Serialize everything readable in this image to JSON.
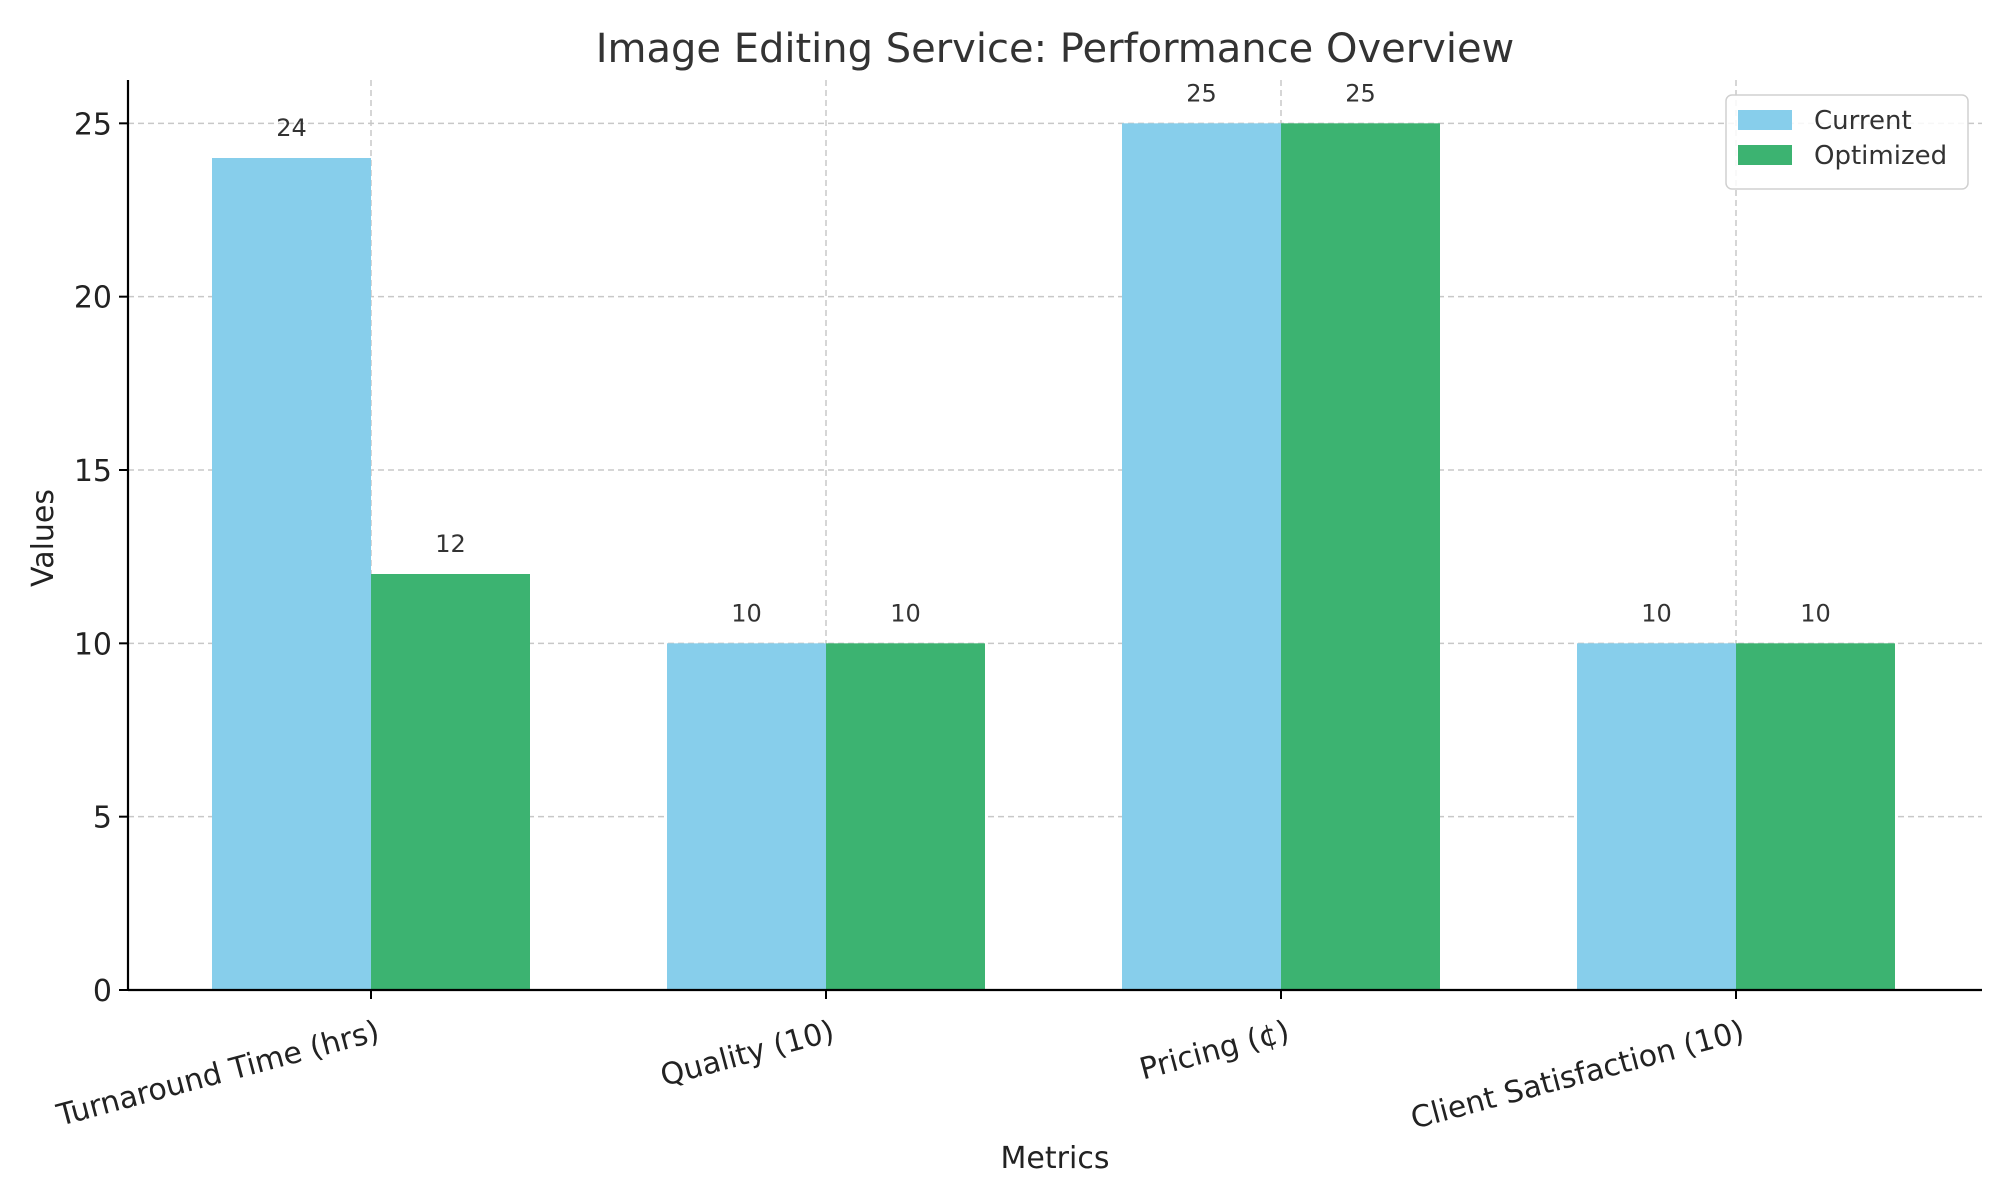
{
  "chart_data": {
    "type": "bar",
    "title": "Image Editing Service: Performance Overview",
    "xlabel": "Metrics",
    "ylabel": "Values",
    "categories": [
      "Turnaround Time (hrs)",
      "Quality (10)",
      "Pricing (¢)",
      "Client Satisfaction (10)"
    ],
    "series": [
      {
        "name": "Current",
        "values": [
          24,
          10,
          25,
          10
        ],
        "color": "#87CEEB"
      },
      {
        "name": "Optimized",
        "values": [
          12,
          10,
          25,
          10
        ],
        "color": "#3CB371"
      }
    ],
    "ylim": [
      0,
      26.25
    ],
    "yticks": [
      0,
      5,
      10,
      15,
      20,
      25
    ],
    "grid": true,
    "legend_position": "top-right"
  }
}
